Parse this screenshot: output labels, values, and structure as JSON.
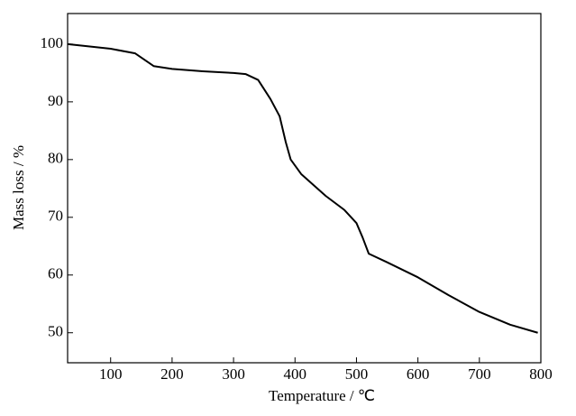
{
  "chart_data": {
    "type": "line",
    "x_label": "Temperature / ℃",
    "y_label": "Mass loss / %",
    "x": [
      30,
      100,
      140,
      170,
      200,
      250,
      300,
      320,
      340,
      360,
      375,
      385,
      393,
      410,
      450,
      480,
      500,
      510,
      520,
      550,
      600,
      650,
      700,
      750,
      795
    ],
    "series": [
      {
        "color": "#000000",
        "values": [
          100,
          99.2,
          98.4,
          96.2,
          95.7,
          95.3,
          95.0,
          94.8,
          93.8,
          90.5,
          87.5,
          83,
          80,
          77.5,
          73.7,
          71.3,
          69,
          66.5,
          63.7,
          62.2,
          59.6,
          56.5,
          53.6,
          51.4,
          50.0
        ]
      }
    ],
    "xlim": [
      30,
      800
    ],
    "ylim": [
      44.8,
      105.3
    ],
    "xticks": [
      100,
      200,
      300,
      400,
      500,
      600,
      700,
      800
    ],
    "yticks": [
      50,
      60,
      70,
      80,
      90,
      100
    ]
  }
}
